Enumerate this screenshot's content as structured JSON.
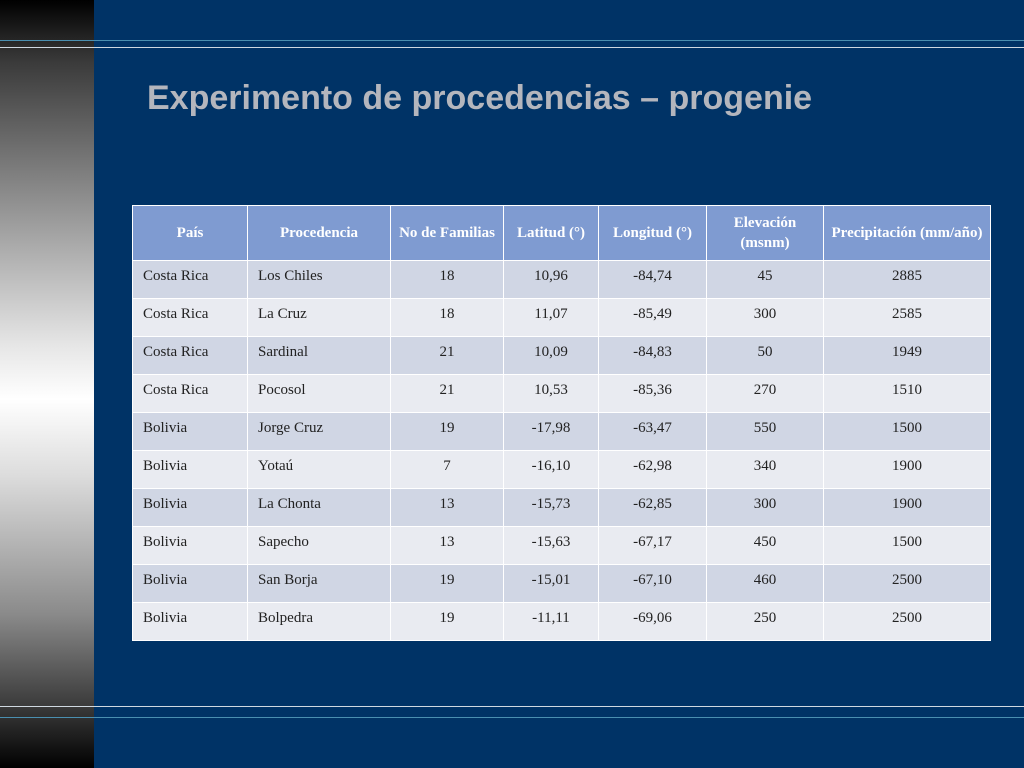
{
  "slide": {
    "title": "Experimento de procedencias – progenie"
  },
  "colors": {
    "background": "#003366",
    "title": "#b4b6bd",
    "header_bg": "#7f9bd1",
    "row_odd": "#d0d6e4",
    "row_even": "#e9ebf1"
  },
  "table": {
    "headers": [
      "País",
      "Procedencia",
      "No de Familias",
      "Latitud (°)",
      "Longitud (°)",
      "Elevación (msnm)",
      "Precipitación (mm/año)"
    ],
    "rows": [
      [
        "Costa Rica",
        "Los Chiles",
        "18",
        "10,96",
        "-84,74",
        "45",
        "2885"
      ],
      [
        "Costa Rica",
        "La Cruz",
        "18",
        "11,07",
        "-85,49",
        "300",
        "2585"
      ],
      [
        "Costa Rica",
        "Sardinal",
        "21",
        "10,09",
        "-84,83",
        "50",
        "1949"
      ],
      [
        "Costa Rica",
        "Pocosol",
        "21",
        "10,53",
        "-85,36",
        "270",
        "1510"
      ],
      [
        "Bolivia",
        "Jorge Cruz",
        "19",
        "-17,98",
        "-63,47",
        "550",
        "1500"
      ],
      [
        "Bolivia",
        "Yotaú",
        "7",
        "-16,10",
        "-62,98",
        "340",
        "1900"
      ],
      [
        "Bolivia",
        "La Chonta",
        "13",
        "-15,73",
        "-62,85",
        "300",
        "1900"
      ],
      [
        "Bolivia",
        "Sapecho",
        "13",
        "-15,63",
        "-67,17",
        "450",
        "1500"
      ],
      [
        "Bolivia",
        "San Borja",
        "19",
        "-15,01",
        "-67,10",
        "460",
        "2500"
      ],
      [
        "Bolivia",
        "Bolpedra",
        "19",
        "-11,11",
        "-69,06",
        "250",
        "2500"
      ]
    ]
  }
}
